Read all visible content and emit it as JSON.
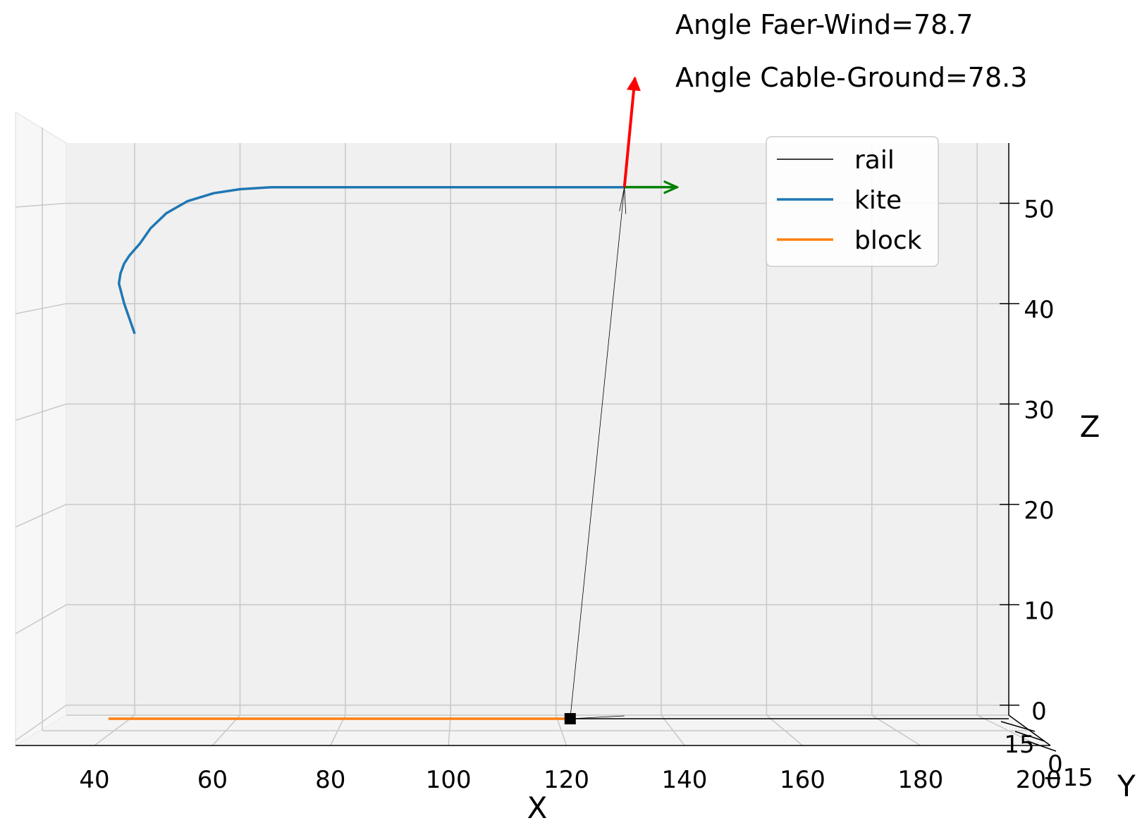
{
  "annotations": {
    "faer_wind": "Angle Faer-Wind=78.7",
    "cable_ground": "Angle Cable-Ground=78.3"
  },
  "legend": {
    "items": [
      {
        "label": "rail",
        "color": "#000000"
      },
      {
        "label": "kite",
        "color": "#1f77b4"
      },
      {
        "label": "block",
        "color": "#ff7f0e"
      }
    ]
  },
  "axes": {
    "x": {
      "label": "X",
      "ticks": [
        "40",
        "60",
        "80",
        "100",
        "120",
        "140",
        "160",
        "180",
        "200"
      ]
    },
    "y": {
      "label": "Y",
      "ticks": [
        "15",
        "0",
        "−15"
      ]
    },
    "z": {
      "label": "Z",
      "ticks": [
        "0",
        "10",
        "20",
        "30",
        "40",
        "50"
      ]
    }
  },
  "chart_data": {
    "type": "line",
    "projection": "3d",
    "xlim": [
      27,
      206
    ],
    "ylim": [
      -15,
      15
    ],
    "zlim": [
      -1,
      56
    ],
    "grid": true,
    "legend_position": "top-right",
    "colors": {
      "kite": "#1f77b4",
      "block": "#ff7f0e",
      "rail": "#000000",
      "tangent_vector": "#008000",
      "aero_vector": "#ff0000"
    },
    "series": [
      {
        "name": "kite",
        "x": [
          40,
          38,
          37,
          37.3,
          38,
          39,
          41,
          43,
          46,
          50,
          55,
          60,
          66,
          80,
          100,
          120,
          133
        ],
        "z": [
          37,
          40,
          42,
          43,
          44,
          44.8,
          46,
          47.5,
          49,
          50.2,
          51,
          51.4,
          51.6,
          51.6,
          51.6,
          51.6,
          51.6
        ]
      },
      {
        "name": "block",
        "x": [
          35,
          122.7
        ],
        "z": [
          0,
          0
        ]
      },
      {
        "name": "rail",
        "x": [
          122.7,
          206
        ],
        "z": [
          0,
          0
        ]
      }
    ],
    "cable": {
      "from": [
        122.7,
        0
      ],
      "to": [
        133,
        51.6
      ]
    },
    "block_position": [
      122.7,
      0
    ],
    "vectors": [
      {
        "name": "tangent",
        "from": [
          133,
          51.6
        ],
        "to": [
          143,
          51.6
        ]
      },
      {
        "name": "aero",
        "from": [
          133,
          51.6
        ],
        "to": [
          135,
          62.5
        ]
      }
    ]
  }
}
